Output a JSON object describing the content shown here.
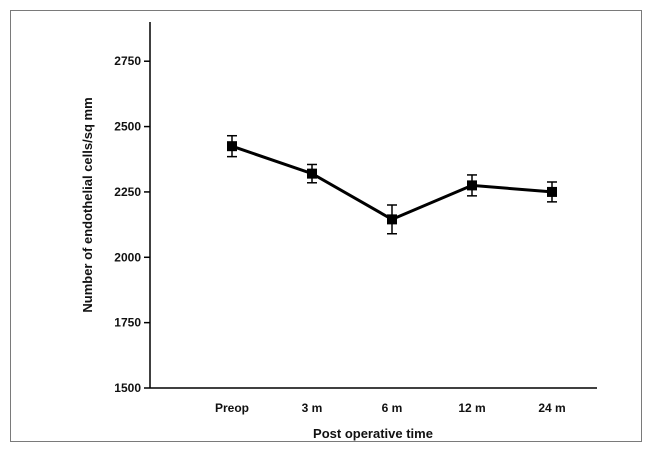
{
  "chart_data": {
    "type": "line",
    "xlabel": "Post operative time",
    "ylabel": "Number of endothelial cells/sq mm",
    "categories": [
      "Preop",
      "3 m",
      "6 m",
      "12 m",
      "24 m"
    ],
    "series": [
      {
        "values": [
          2425,
          2320,
          2145,
          2275,
          2250
        ],
        "error": [
          40,
          35,
          55,
          40,
          38
        ]
      }
    ],
    "ylim": [
      1500,
      2900
    ],
    "yticks": [
      "1500",
      "1750",
      "2000",
      "2250",
      "2500",
      "2750"
    ],
    "grid": false,
    "legend": "none",
    "line_color": "#000000",
    "marker": "square"
  }
}
